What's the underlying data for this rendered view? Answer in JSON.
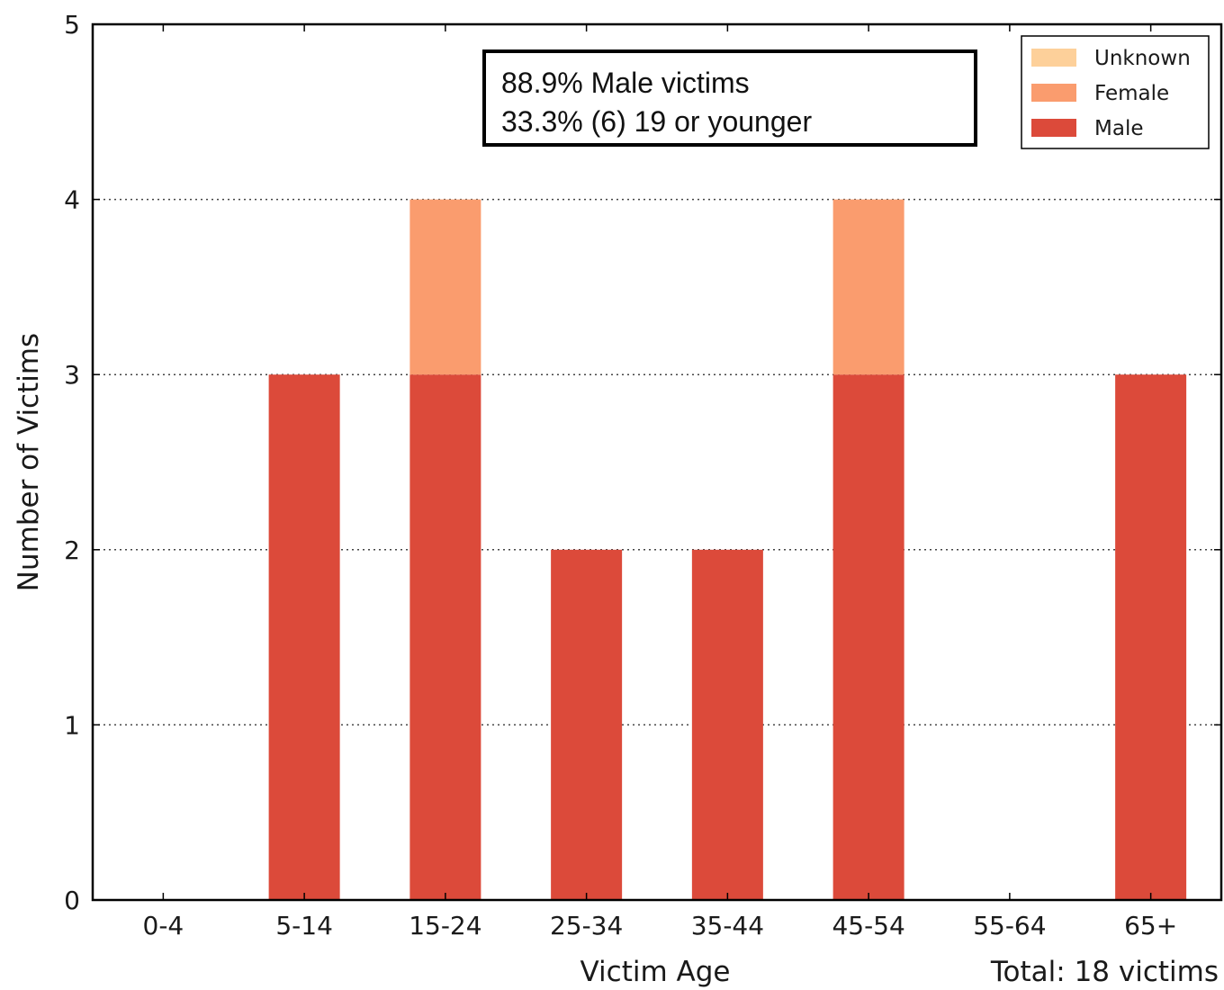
{
  "chart_data": {
    "type": "bar",
    "stacked": true,
    "categories": [
      "0-4",
      "5-14",
      "15-24",
      "25-34",
      "35-44",
      "45-54",
      "55-64",
      "65+"
    ],
    "series": [
      {
        "name": "Male",
        "color": "#dc4a3a",
        "values": [
          0,
          3,
          3,
          2,
          2,
          3,
          0,
          3
        ]
      },
      {
        "name": "Female",
        "color": "#fa9c6e",
        "values": [
          0,
          0,
          1,
          0,
          0,
          1,
          0,
          0
        ]
      },
      {
        "name": "Unknown",
        "color": "#fdd09a",
        "values": [
          0,
          0,
          0,
          0,
          0,
          0,
          0,
          0
        ]
      }
    ],
    "legend_order": [
      "Unknown",
      "Female",
      "Male"
    ],
    "legend_position": "top-right",
    "xlabel": "Victim Age",
    "ylabel": "Number of Victims",
    "ylim": [
      0,
      5
    ],
    "yticks": [
      0,
      1,
      2,
      3,
      4,
      5
    ],
    "grid": "horizontal dotted",
    "annotation_lines": [
      "88.9% Male victims",
      "33.3% (6) 19 or younger"
    ],
    "footer_note": "Total: 18 victims"
  }
}
